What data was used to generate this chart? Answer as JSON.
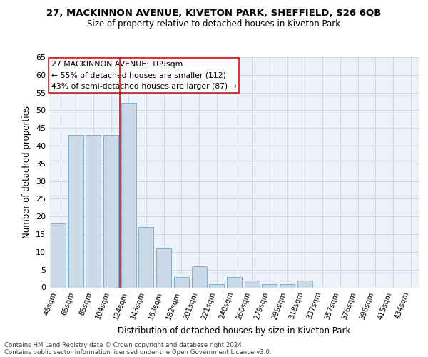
{
  "title1": "27, MACKINNON AVENUE, KIVETON PARK, SHEFFIELD, S26 6QB",
  "title2": "Size of property relative to detached houses in Kiveton Park",
  "xlabel": "Distribution of detached houses by size in Kiveton Park",
  "ylabel": "Number of detached properties",
  "categories": [
    "46sqm",
    "65sqm",
    "85sqm",
    "104sqm",
    "124sqm",
    "143sqm",
    "163sqm",
    "182sqm",
    "201sqm",
    "221sqm",
    "240sqm",
    "260sqm",
    "279sqm",
    "299sqm",
    "318sqm",
    "337sqm",
    "357sqm",
    "376sqm",
    "396sqm",
    "415sqm",
    "434sqm"
  ],
  "values": [
    18,
    43,
    43,
    43,
    52,
    17,
    11,
    3,
    6,
    1,
    3,
    2,
    1,
    1,
    2,
    0,
    0,
    0,
    0,
    0,
    0
  ],
  "bar_color": "#c9d9e8",
  "bar_edge_color": "#7fb0d0",
  "ylim": [
    0,
    65
  ],
  "yticks": [
    0,
    5,
    10,
    15,
    20,
    25,
    30,
    35,
    40,
    45,
    50,
    55,
    60,
    65
  ],
  "vline_x": 3.5,
  "vline_color": "red",
  "annotation_text": "27 MACKINNON AVENUE: 109sqm\n← 55% of detached houses are smaller (112)\n43% of semi-detached houses are larger (87) →",
  "annotation_box_color": "white",
  "annotation_box_edge": "red",
  "footnote1": "Contains HM Land Registry data © Crown copyright and database right 2024.",
  "footnote2": "Contains public sector information licensed under the Open Government Licence v3.0.",
  "bg_color": "#edf2f9",
  "grid_color": "#c8d4e8"
}
